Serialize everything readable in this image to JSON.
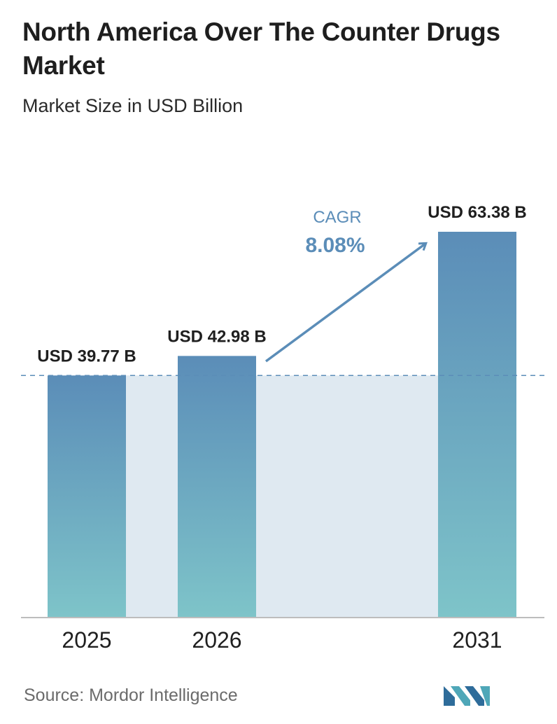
{
  "title": "North America Over The Counter Drugs Market",
  "subtitle": "Market Size in USD Billion",
  "source": "Source:  Mordor Intelligence",
  "colors": {
    "bar_top": "#5b8db8",
    "bar_bottom": "#7ec4c9",
    "band": "#dfe9f1",
    "arrow": "#5b8db8",
    "cagr_text": "#5b8db8",
    "baseline": "#bdbdbd",
    "dashed_line": "#5b8db8"
  },
  "cagr": {
    "label": "CAGR",
    "value": "8.08%"
  },
  "chart_data": {
    "type": "bar",
    "categories": [
      "2025",
      "2026",
      "2031"
    ],
    "values": [
      39.77,
      42.98,
      63.38
    ],
    "data_labels": [
      "USD 39.77 B",
      "USD 42.98 B",
      "USD 63.38 B"
    ],
    "ylim": [
      0,
      63.38
    ],
    "grid": false,
    "reference_line": 39.77
  }
}
